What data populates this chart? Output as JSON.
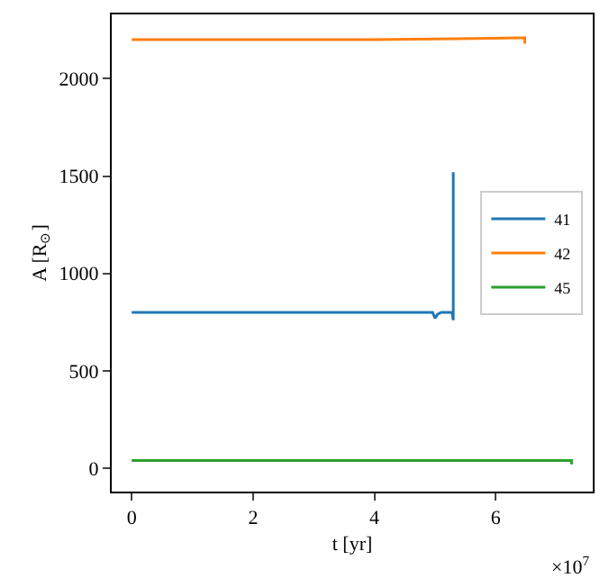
{
  "chart_data": {
    "type": "line",
    "xlabel": "t [yr]",
    "ylabel": "A [R$_{⊙}$]",
    "annotations": [
      "×10$^{7}$"
    ],
    "xlim": [
      -0.33,
      7.6
    ],
    "xticks": [
      0,
      2,
      4,
      6
    ],
    "ylim": [
      -120,
      2330
    ],
    "yticks": [
      0,
      500,
      1000,
      1500,
      2000
    ],
    "legend": "right",
    "line_style": "solid",
    "marker": "none",
    "series": [
      {
        "name": "41",
        "color": "#1f77b4",
        "x": [
          0,
          4.96,
          5.0,
          5.04,
          5.1,
          5.28,
          5.3,
          5.3
        ],
        "values": [
          800,
          800,
          770,
          790,
          800,
          800,
          760,
          1520
        ]
      },
      {
        "name": "42",
        "color": "#ff7f0e",
        "x": [
          0,
          4.0,
          6.45,
          6.48,
          6.48
        ],
        "values": [
          2200,
          2200,
          2210,
          2210,
          2180
        ]
      },
      {
        "name": "45",
        "color": "#2ca02c",
        "x": [
          0,
          7.25,
          7.25
        ],
        "values": [
          40,
          40,
          20
        ]
      }
    ]
  }
}
